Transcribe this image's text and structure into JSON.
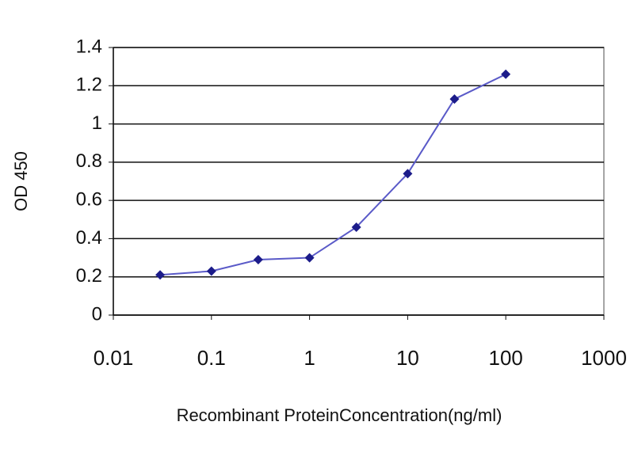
{
  "chart_data": {
    "type": "line",
    "x_label": "Recombinant ProteinConcentration(ng/ml)",
    "y_label": "OD 450",
    "x": [
      0.03,
      0.1,
      0.3,
      1,
      3,
      10,
      30,
      100
    ],
    "series": [
      {
        "color": "#1c1c8a",
        "values": [
          0.21,
          0.23,
          0.29,
          0.3,
          0.46,
          0.74,
          1.13,
          1.26
        ]
      }
    ],
    "xlim": [
      0.01,
      1000
    ],
    "xticks": [
      0.01,
      0.1,
      1,
      10,
      100,
      1000
    ],
    "xscale": "log",
    "ylim": [
      0,
      1.4
    ],
    "yticks": [
      0,
      0.2,
      0.4,
      0.6,
      0.8,
      1,
      1.2,
      1.4
    ],
    "grid": true
  }
}
